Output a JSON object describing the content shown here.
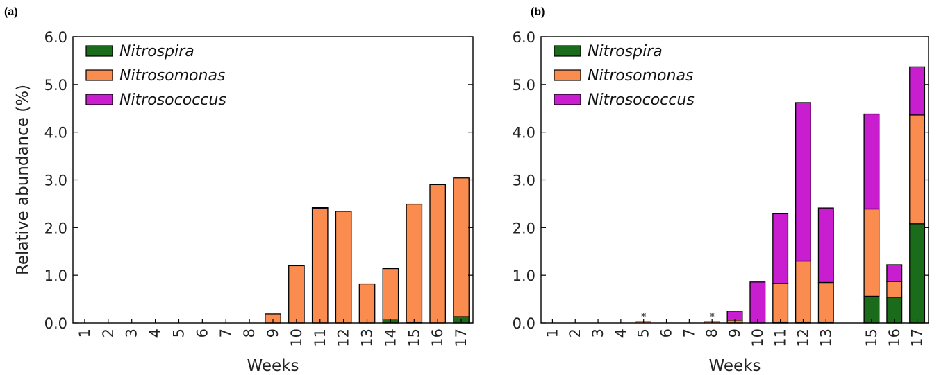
{
  "colors": {
    "nitrospira": "#1a6b1a",
    "nitrosomonas": "#fa8c4f",
    "nitrosococcus": "#c81ecf"
  },
  "chart_data": [
    {
      "panel": "(a)",
      "type": "bar",
      "stacked": true,
      "xlabel": "Weeks",
      "ylabel": "Relative abundance (%)",
      "ylim": [
        0,
        6
      ],
      "yticks": [
        "0.0",
        "1.0",
        "2.0",
        "3.0",
        "4.0",
        "5.0",
        "6.0"
      ],
      "legend_position": "top-left",
      "categories": [
        "1",
        "2",
        "3",
        "4",
        "5",
        "6",
        "7",
        "8",
        "9",
        "10",
        "11",
        "12",
        "13",
        "14",
        "15",
        "16",
        "17"
      ],
      "series": [
        {
          "name": "Nitrospira",
          "values": [
            0,
            0,
            0,
            0,
            0,
            0,
            0,
            0,
            0,
            0,
            0,
            0,
            0,
            0.07,
            0.02,
            0,
            0.13
          ]
        },
        {
          "name": "Nitrosomonas",
          "values": [
            0,
            0,
            0,
            0,
            0,
            0,
            0,
            0,
            0.19,
            1.2,
            2.4,
            2.34,
            0.82,
            1.07,
            2.47,
            2.9,
            2.91
          ]
        },
        {
          "name": "Nitrosococcus",
          "values": [
            0,
            0,
            0,
            0,
            0,
            0,
            0,
            0,
            0,
            0,
            0.02,
            0,
            0,
            0,
            0,
            0,
            0
          ]
        }
      ],
      "annotations": []
    },
    {
      "panel": "(b)",
      "type": "bar",
      "stacked": true,
      "xlabel": "Weeks",
      "ylabel": "",
      "ylim": [
        0,
        6
      ],
      "yticks": [
        "0.0",
        "1.0",
        "2.0",
        "3.0",
        "4.0",
        "5.0",
        "6.0"
      ],
      "legend_position": "top-left",
      "categories": [
        "1",
        "2",
        "3",
        "4",
        "5",
        "6",
        "7",
        "8",
        "9",
        "10",
        "11",
        "12",
        "13",
        "15",
        "16",
        "17"
      ],
      "slots": [
        1,
        2,
        3,
        4,
        5,
        6,
        7,
        8,
        9,
        10,
        11,
        12,
        13,
        15,
        16,
        17
      ],
      "series": [
        {
          "name": "Nitrospira",
          "values": [
            0,
            0,
            0,
            0,
            0,
            0,
            0,
            0,
            0,
            0,
            0.02,
            0.02,
            0.02,
            0.56,
            0.54,
            2.08
          ]
        },
        {
          "name": "Nitrosomonas",
          "values": [
            0,
            0,
            0,
            0,
            0,
            0,
            0,
            0,
            0.06,
            0,
            0.81,
            1.28,
            0.83,
            1.83,
            0.33,
            2.28
          ]
        },
        {
          "name": "Nitrosococcus",
          "values": [
            0,
            0,
            0,
            0,
            0,
            0,
            0,
            0,
            0.19,
            0.86,
            1.46,
            3.32,
            1.56,
            1.99,
            0.35,
            1.01
          ]
        }
      ],
      "annotations": [
        {
          "category": "5",
          "text": "*"
        },
        {
          "category": "8",
          "text": "*"
        }
      ]
    }
  ]
}
